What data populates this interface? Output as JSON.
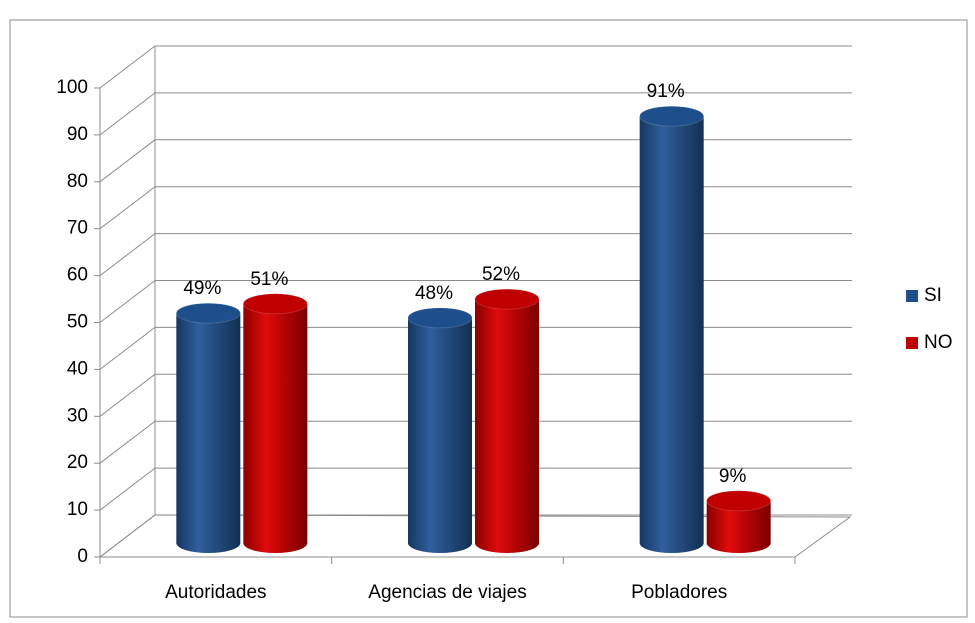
{
  "chart_data": {
    "type": "bar3d",
    "categories": [
      "Autoridades",
      "Agencias de viajes",
      "Pobladores"
    ],
    "series": [
      {
        "name": "SI",
        "color": "#1f4e8c",
        "values": [
          49,
          48,
          91
        ],
        "value_labels": [
          "49%",
          "48%",
          "91%"
        ]
      },
      {
        "name": "NO",
        "color": "#c00000",
        "values": [
          51,
          52,
          9
        ],
        "value_labels": [
          "51%",
          "52%",
          "9%"
        ]
      }
    ],
    "ylim": [
      0,
      100
    ],
    "yticks": [
      0,
      10,
      20,
      30,
      40,
      50,
      60,
      70,
      80,
      90,
      100
    ],
    "grid": true,
    "legend": "right"
  }
}
